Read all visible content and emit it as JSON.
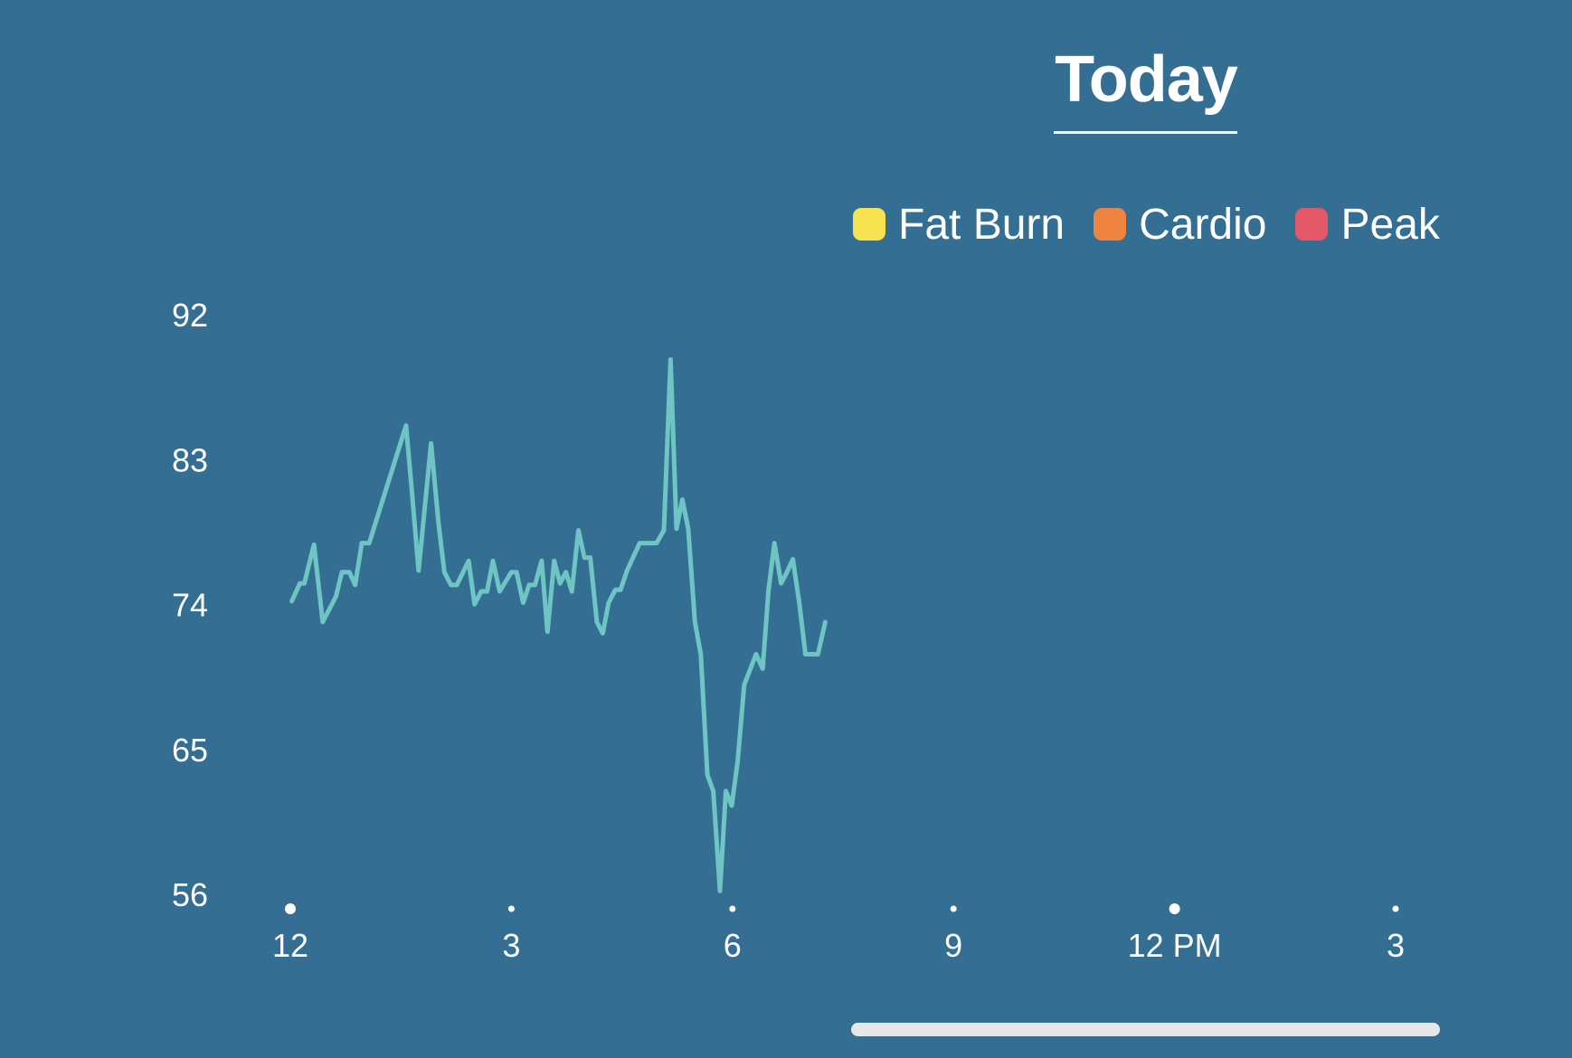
{
  "header": {
    "tab_label": "Today"
  },
  "legend": [
    {
      "label": "Fat Burn",
      "color": "#f7e34f"
    },
    {
      "label": "Cardio",
      "color": "#ef8340"
    },
    {
      "label": "Peak",
      "color": "#e25866"
    }
  ],
  "scrollbar": {
    "color": "#e8e8e8"
  },
  "chart_data": {
    "type": "line",
    "title": "",
    "xlabel": "",
    "ylabel": "",
    "y_ticks": [
      92,
      83,
      74,
      65,
      56
    ],
    "ylim": [
      56,
      92
    ],
    "x_ticks": [
      {
        "label": "12",
        "hour": 0
      },
      {
        "label": "3",
        "hour": 3
      },
      {
        "label": "6",
        "hour": 6
      },
      {
        "label": "9",
        "hour": 9
      },
      {
        "label": "12 PM",
        "hour": 12
      },
      {
        "label": "3",
        "hour": 15
      }
    ],
    "xlim_hours": [
      0,
      15
    ],
    "grid": false,
    "legend_position": "top-right",
    "line_color": "#6fc4c4",
    "series": [
      {
        "points": [
          [
            0.02,
            74.1
          ],
          [
            0.13,
            75.2
          ],
          [
            0.19,
            75.2
          ],
          [
            0.32,
            77.6
          ],
          [
            0.44,
            72.8
          ],
          [
            0.62,
            74.4
          ],
          [
            0.7,
            75.9
          ],
          [
            0.8,
            75.9
          ],
          [
            0.88,
            75.1
          ],
          [
            0.97,
            77.7
          ],
          [
            1.07,
            77.7
          ],
          [
            1.57,
            85.0
          ],
          [
            1.65,
            80.9
          ],
          [
            1.74,
            76.0
          ],
          [
            1.91,
            83.9
          ],
          [
            2.01,
            79.0
          ],
          [
            2.09,
            75.9
          ],
          [
            2.18,
            75.1
          ],
          [
            2.26,
            75.1
          ],
          [
            2.42,
            76.6
          ],
          [
            2.5,
            73.9
          ],
          [
            2.59,
            74.7
          ],
          [
            2.67,
            74.7
          ],
          [
            2.75,
            76.6
          ],
          [
            2.84,
            74.7
          ],
          [
            3.0,
            75.9
          ],
          [
            3.07,
            75.9
          ],
          [
            3.16,
            74.0
          ],
          [
            3.24,
            75.1
          ],
          [
            3.32,
            75.1
          ],
          [
            3.41,
            76.6
          ],
          [
            3.49,
            72.2
          ],
          [
            3.58,
            76.6
          ],
          [
            3.66,
            75.2
          ],
          [
            3.74,
            75.9
          ],
          [
            3.82,
            74.7
          ],
          [
            3.91,
            78.5
          ],
          [
            3.99,
            76.8
          ],
          [
            4.07,
            76.8
          ],
          [
            4.16,
            72.8
          ],
          [
            4.24,
            72.1
          ],
          [
            4.32,
            74.0
          ],
          [
            4.41,
            74.8
          ],
          [
            4.48,
            74.8
          ],
          [
            4.57,
            76.0
          ],
          [
            4.74,
            77.7
          ],
          [
            4.97,
            77.7
          ],
          [
            5.07,
            78.5
          ],
          [
            5.16,
            89.1
          ],
          [
            5.24,
            78.6
          ],
          [
            5.32,
            80.4
          ],
          [
            5.4,
            78.6
          ],
          [
            5.49,
            72.8
          ],
          [
            5.57,
            70.8
          ],
          [
            5.66,
            63.3
          ],
          [
            5.74,
            62.3
          ],
          [
            5.83,
            56.1
          ],
          [
            5.91,
            62.3
          ],
          [
            5.99,
            61.4
          ],
          [
            6.07,
            64.1
          ],
          [
            6.16,
            68.9
          ],
          [
            6.32,
            70.8
          ],
          [
            6.41,
            69.9
          ],
          [
            6.49,
            74.8
          ],
          [
            6.57,
            77.7
          ],
          [
            6.66,
            75.2
          ],
          [
            6.74,
            75.9
          ],
          [
            6.82,
            76.7
          ],
          [
            6.91,
            73.9
          ],
          [
            6.99,
            70.8
          ],
          [
            7.16,
            70.8
          ],
          [
            7.26,
            72.8
          ]
        ]
      }
    ]
  }
}
